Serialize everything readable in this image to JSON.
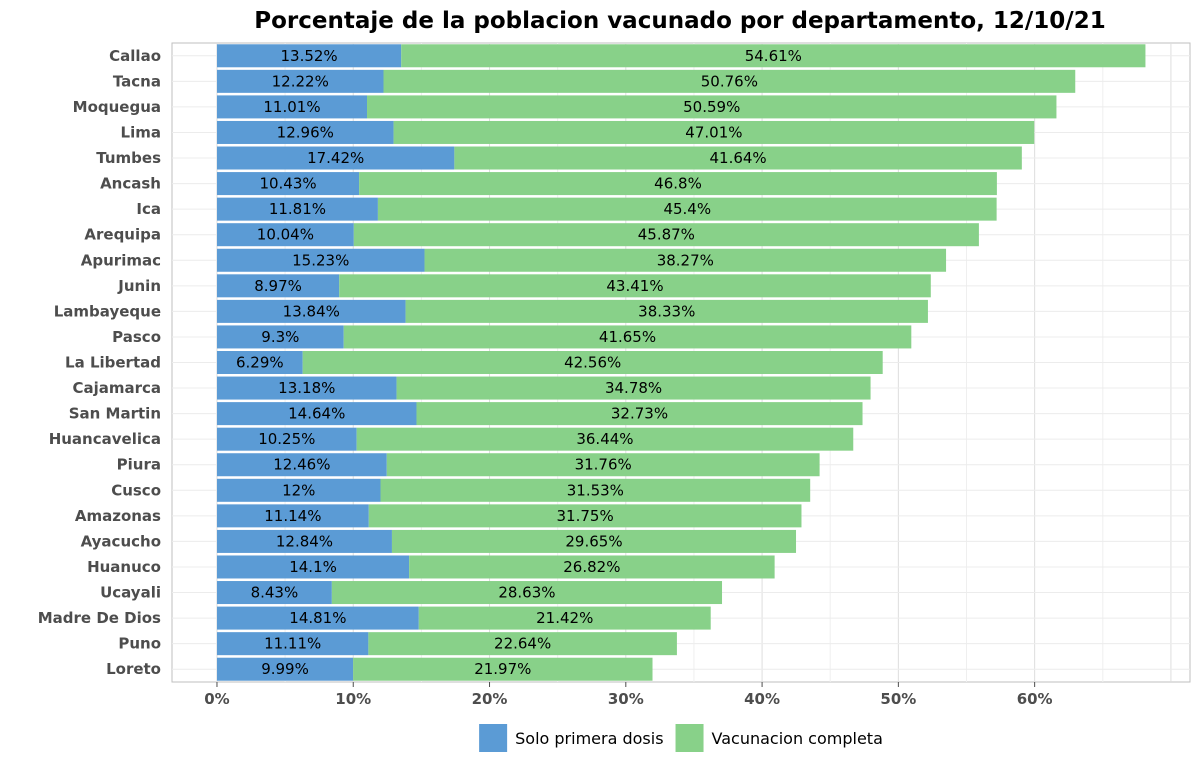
{
  "chart_data": {
    "type": "bar",
    "orientation": "horizontal",
    "stacked": true,
    "title": "Porcentaje de la poblacion vacunado por departamento, 12/10/21",
    "xlabel": "",
    "ylabel": "",
    "xlim": [
      -3.3,
      71.4
    ],
    "x_ticks": [
      0,
      10,
      20,
      30,
      40,
      50,
      60
    ],
    "x_tick_labels": [
      "0%",
      "10%",
      "20%",
      "30%",
      "40%",
      "50%",
      "60%"
    ],
    "grid": true,
    "legend_position": "bottom",
    "categories": [
      "Callao",
      "Tacna",
      "Moquegua",
      "Lima",
      "Tumbes",
      "Ancash",
      "Ica",
      "Arequipa",
      "Apurimac",
      "Junin",
      "Lambayeque",
      "Pasco",
      "La Libertad",
      "Cajamarca",
      "San Martin",
      "Huancavelica",
      "Piura",
      "Cusco",
      "Amazonas",
      "Ayacucho",
      "Huanuco",
      "Ucayali",
      "Madre De Dios",
      "Puno",
      "Loreto"
    ],
    "series": [
      {
        "name": "Solo primera dosis",
        "color": "#5b9bd5",
        "values": [
          13.52,
          12.22,
          11.01,
          12.96,
          17.42,
          10.43,
          11.81,
          10.04,
          15.23,
          8.97,
          13.84,
          9.3,
          6.29,
          13.18,
          14.64,
          10.25,
          12.46,
          12,
          11.14,
          12.84,
          14.1,
          8.43,
          14.81,
          11.11,
          9.99
        ],
        "labels": [
          "13.52%",
          "12.22%",
          "11.01%",
          "12.96%",
          "17.42%",
          "10.43%",
          "11.81%",
          "10.04%",
          "15.23%",
          "8.97%",
          "13.84%",
          "9.3%",
          "6.29%",
          "13.18%",
          "14.64%",
          "10.25%",
          "12.46%",
          "12%",
          "11.14%",
          "12.84%",
          "14.1%",
          "8.43%",
          "14.81%",
          "11.11%",
          "9.99%"
        ]
      },
      {
        "name": "Vacunacion completa",
        "color": "#88d189",
        "values": [
          54.61,
          50.76,
          50.59,
          47.01,
          41.64,
          46.8,
          45.4,
          45.87,
          38.27,
          43.41,
          38.33,
          41.65,
          42.56,
          34.78,
          32.73,
          36.44,
          31.76,
          31.53,
          31.75,
          29.65,
          26.82,
          28.63,
          21.42,
          22.64,
          21.97
        ],
        "labels": [
          "54.61%",
          "50.76%",
          "50.59%",
          "47.01%",
          "41.64%",
          "46.8%",
          "45.4%",
          "45.87%",
          "38.27%",
          "43.41%",
          "38.33%",
          "41.65%",
          "42.56%",
          "34.78%",
          "32.73%",
          "36.44%",
          "31.76%",
          "31.53%",
          "31.75%",
          "29.65%",
          "26.82%",
          "28.63%",
          "21.42%",
          "22.64%",
          "21.97%"
        ]
      }
    ]
  }
}
